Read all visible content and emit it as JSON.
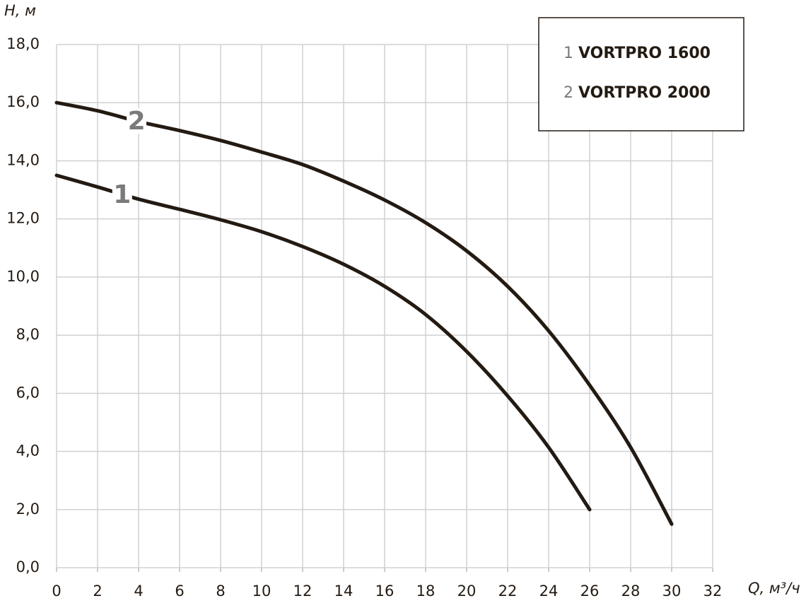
{
  "chart_data": {
    "type": "line",
    "y_label": "H, м",
    "x_label": "Q, м³/ч",
    "xlim": [
      0,
      32
    ],
    "xticks": [
      0,
      2,
      4,
      6,
      8,
      10,
      12,
      14,
      16,
      18,
      20,
      22,
      24,
      26,
      28,
      30,
      32
    ],
    "ylim": [
      0,
      18
    ],
    "yticks": [
      {
        "value": 0,
        "label": "0,0"
      },
      {
        "value": 2,
        "label": "2,0"
      },
      {
        "value": 4,
        "label": "4,0"
      },
      {
        "value": 6,
        "label": "6,0"
      },
      {
        "value": 8,
        "label": "8,0"
      },
      {
        "value": 10,
        "label": "10,0"
      },
      {
        "value": 12,
        "label": "12,0"
      },
      {
        "value": 14,
        "label": "14,0"
      },
      {
        "value": 16,
        "label": "16,0"
      },
      {
        "value": 18,
        "label": "18,0"
      }
    ],
    "grid": true,
    "legend": "upper right",
    "series": [
      {
        "name": "VORTPRO 1600",
        "curve_label": "1",
        "color": "#231a12",
        "x": [
          0,
          2,
          4,
          6,
          8,
          10,
          12,
          14,
          16,
          18,
          20,
          22,
          24,
          26
        ],
        "values": [
          13.5,
          13.1,
          12.68,
          12.33,
          11.97,
          11.56,
          11.05,
          10.44,
          9.68,
          8.71,
          7.44,
          5.91,
          4.14,
          2.0
        ]
      },
      {
        "name": "VORTPRO 2000",
        "curve_label": "2",
        "color": "#231a12",
        "x": [
          0,
          2,
          4,
          6,
          8,
          10,
          12,
          14,
          16,
          18,
          20,
          22,
          24,
          26,
          28,
          30
        ],
        "values": [
          16.0,
          15.72,
          15.35,
          15.04,
          14.7,
          14.3,
          13.87,
          13.3,
          12.65,
          11.87,
          10.9,
          9.68,
          8.15,
          6.28,
          4.14,
          1.5
        ]
      }
    ]
  }
}
